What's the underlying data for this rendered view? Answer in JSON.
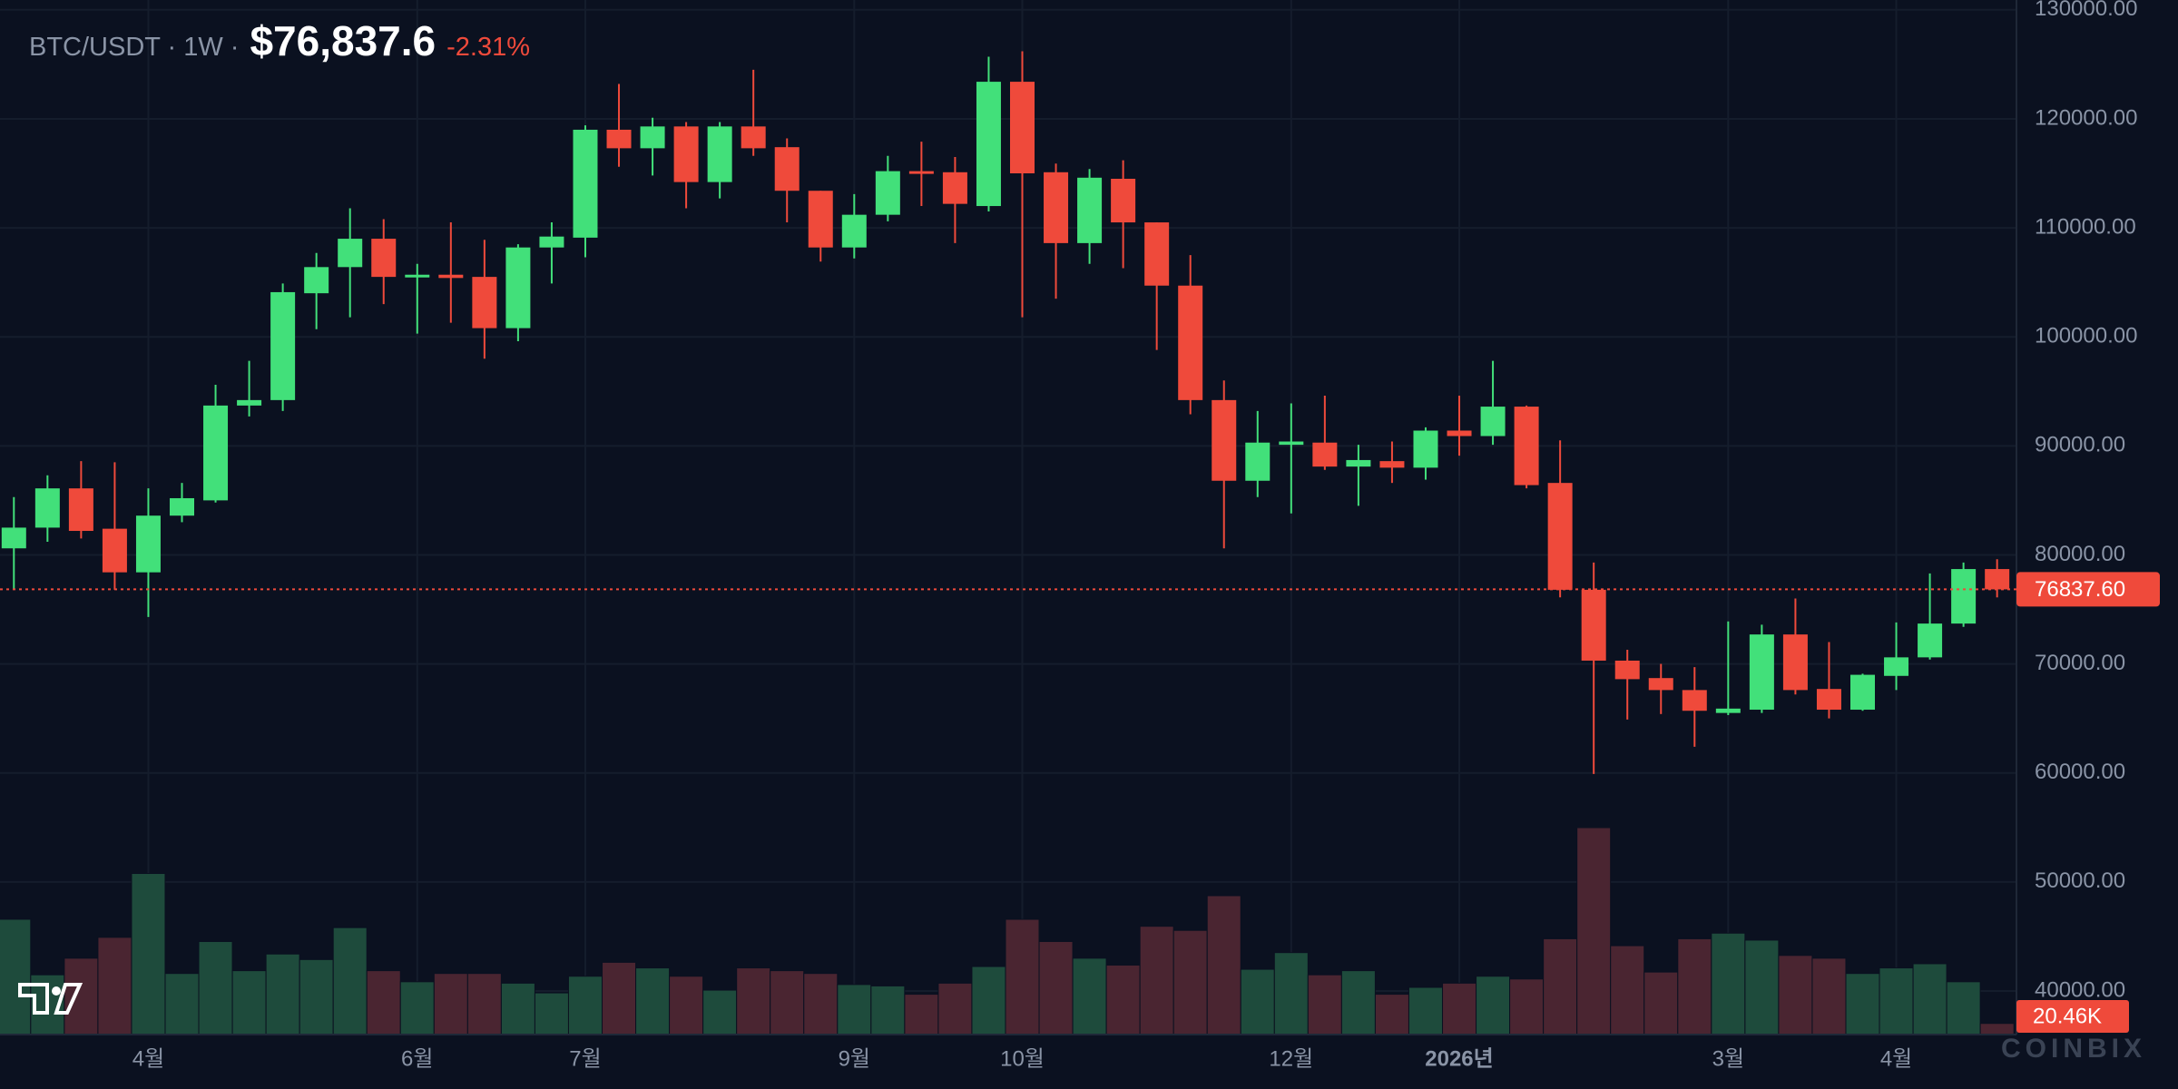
{
  "chart_data": {
    "type": "candlestick",
    "title": "BTC/USDT · 1W ·",
    "price": "$76,837.6",
    "change": "-2.31%",
    "watermark": "COINBIX",
    "up_color": "#42e07a",
    "down_color": "#ef4a3b",
    "volume_up_color": "#1e4b3c",
    "volume_down_color": "#4a2531",
    "ylim": [
      36000,
      130900
    ],
    "yticks": [
      {
        "value": 40000,
        "label": "40000.00"
      },
      {
        "value": 50000,
        "label": "50000.00"
      },
      {
        "value": 60000,
        "label": "60000.00"
      },
      {
        "value": 70000,
        "label": "70000.00"
      },
      {
        "value": 80000,
        "label": "80000.00"
      },
      {
        "value": 90000,
        "label": "90000.00"
      },
      {
        "value": 100000,
        "label": "100000.00"
      },
      {
        "value": 110000,
        "label": "110000.00"
      },
      {
        "value": 120000,
        "label": "120000.00"
      },
      {
        "value": 130000,
        "label": "130000.00"
      }
    ],
    "grid": true,
    "last_price": {
      "value": 76837.6,
      "label": "76837.60"
    },
    "volume_label": "20.46K",
    "categories": [
      null,
      null,
      null,
      null,
      "4월",
      null,
      null,
      null,
      null,
      null,
      null,
      null,
      "6월",
      null,
      null,
      null,
      null,
      "7월",
      null,
      null,
      null,
      null,
      null,
      null,
      null,
      "9월",
      null,
      null,
      null,
      null,
      "10월",
      null,
      null,
      null,
      null,
      null,
      null,
      null,
      "12월",
      null,
      null,
      null,
      null,
      "2026년",
      null,
      null,
      null,
      null,
      null,
      null,
      null,
      "3월",
      null,
      null,
      null,
      null,
      "4월",
      null,
      null,
      null
    ],
    "open": [
      80600,
      82500,
      86100,
      82400,
      78400,
      83600,
      85000,
      93700,
      94200,
      104000,
      106400,
      109000,
      105500,
      105700,
      105500,
      100800,
      108200,
      109100,
      119000,
      117300,
      119300,
      114200,
      119300,
      117400,
      113400,
      108200,
      111200,
      115200,
      115100,
      112000,
      123400,
      115100,
      108600,
      114500,
      110500,
      104700,
      94200,
      86800,
      90100,
      90300,
      88100,
      88600,
      88000,
      91400,
      90900,
      93600,
      86600,
      76800,
      70300,
      68700,
      67600,
      65500,
      65800,
      72700,
      67700,
      65800,
      68900,
      70600,
      73700,
      78700
    ],
    "high": [
      85300,
      87300,
      88600,
      88500,
      86100,
      86600,
      95600,
      97800,
      104900,
      107700,
      111800,
      110800,
      106700,
      110500,
      108900,
      108500,
      110500,
      119400,
      123200,
      120100,
      119700,
      119700,
      124500,
      118200,
      113400,
      113100,
      116600,
      117900,
      116500,
      125700,
      126200,
      115900,
      115400,
      116200,
      110500,
      107500,
      96000,
      93200,
      93900,
      94600,
      90100,
      90400,
      91700,
      94600,
      97800,
      93700,
      90500,
      79300,
      71300,
      70000,
      69700,
      73900,
      73600,
      76000,
      72000,
      69100,
      73800,
      78300,
      79300,
      79600
    ],
    "low": [
      76800,
      81200,
      81500,
      76800,
      74300,
      83000,
      84800,
      92700,
      93200,
      100700,
      101800,
      103000,
      100300,
      101300,
      98000,
      99600,
      104900,
      107300,
      115600,
      114800,
      111800,
      112700,
      116600,
      110500,
      106900,
      107200,
      110600,
      112000,
      108600,
      111500,
      101800,
      103500,
      106700,
      106300,
      98800,
      92900,
      80600,
      85300,
      83800,
      87800,
      84500,
      86600,
      86900,
      89100,
      90100,
      86100,
      76100,
      59900,
      64900,
      65400,
      62400,
      65300,
      65500,
      67200,
      65000,
      65700,
      67600,
      70400,
      73400,
      76100
    ],
    "close": [
      82500,
      86100,
      82200,
      78400,
      83600,
      85200,
      93700,
      94200,
      104100,
      106400,
      109000,
      105500,
      105700,
      105400,
      100800,
      108200,
      109200,
      119000,
      117300,
      119300,
      114200,
      119300,
      117300,
      113400,
      108200,
      111200,
      115200,
      115000,
      112200,
      123400,
      115000,
      108600,
      114600,
      110500,
      104700,
      94200,
      86800,
      90300,
      90400,
      88100,
      88700,
      88000,
      91400,
      90900,
      93600,
      86400,
      76800,
      70300,
      68600,
      67600,
      65700,
      65900,
      72700,
      67600,
      65800,
      69000,
      70600,
      73700,
      78700,
      76837.6
    ],
    "volume": [
      212300,
      110000,
      140600,
      179000,
      296600,
      112500,
      171300,
      117600,
      148300,
      138100,
      196900,
      117600,
      97200,
      112500,
      112500,
      94600,
      76700,
      107400,
      133000,
      122700,
      107400,
      81800,
      122700,
      117600,
      112500,
      92100,
      89500,
      74200,
      94600,
      125300,
      212200,
      171300,
      140600,
      127900,
      199400,
      191800,
      255700,
      120200,
      150900,
      110000,
      117600,
      74200,
      86900,
      94600,
      107400,
      102300,
      176400,
      381000,
      163600,
      115100,
      176400,
      186700,
      173900,
      145700,
      140600,
      112500,
      122700,
      130400,
      97200,
      20460
    ]
  }
}
